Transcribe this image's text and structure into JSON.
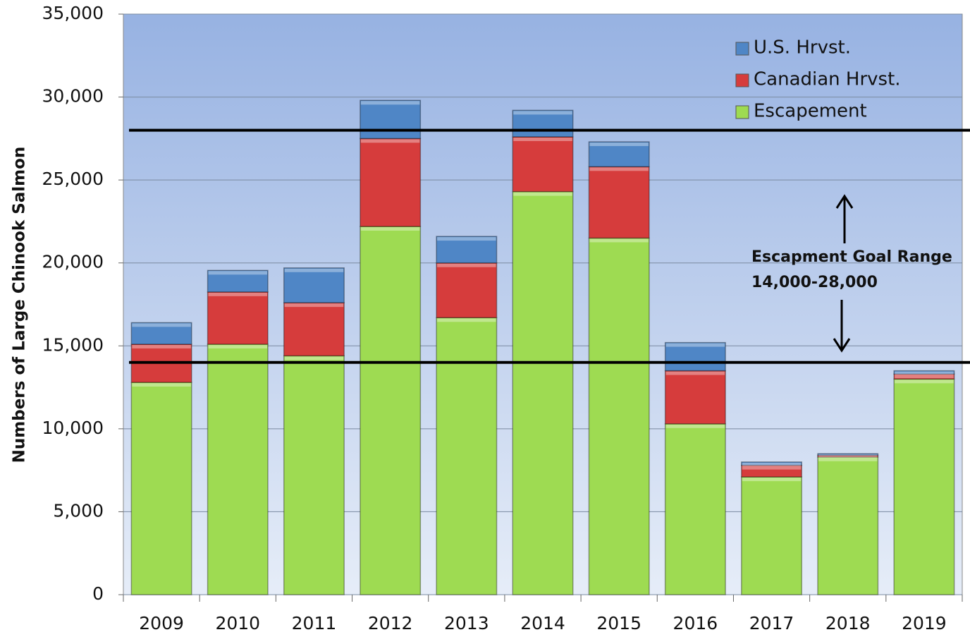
{
  "chart_data": {
    "type": "stacked_bar",
    "y_label": "Numbers of Large Chinook Salmon",
    "categories": [
      "2009",
      "2010",
      "2011",
      "2012",
      "2013",
      "2014",
      "2015",
      "2016",
      "2017",
      "2018",
      "2019"
    ],
    "series": [
      {
        "name": "Escapement",
        "color": "#9edb52",
        "values": [
          12800,
          15100,
          14400,
          22200,
          16700,
          24300,
          21500,
          10300,
          7100,
          8300,
          13000
        ]
      },
      {
        "name": "Canadian Hrvst.",
        "color": "#d63c3c",
        "values": [
          2300,
          3150,
          3200,
          5300,
          3300,
          3300,
          4300,
          3200,
          700,
          100,
          300
        ]
      },
      {
        "name": "U.S. Hrvst.",
        "color": "#4f86c6",
        "values": [
          1300,
          1300,
          2100,
          2300,
          1600,
          1600,
          1500,
          1700,
          200,
          100,
          200
        ]
      }
    ],
    "ylim": [
      0,
      35000
    ],
    "yticks": [
      0,
      {
        "value": 5000,
        "label": "5,000"
      },
      {
        "value": 10000,
        "label": "10,000"
      },
      {
        "value": 15000,
        "label": "15,000"
      },
      {
        "value": 20000,
        "label": "20,000"
      },
      {
        "value": 25000,
        "label": "25,000"
      },
      {
        "value": 30000,
        "label": "30,000"
      },
      {
        "value": 35000,
        "label": "35,000"
      }
    ],
    "grid": true,
    "goal_lines": [
      14000,
      28000
    ],
    "annotation": [
      "Escapment Goal Range",
      "14,000-28,000"
    ]
  }
}
